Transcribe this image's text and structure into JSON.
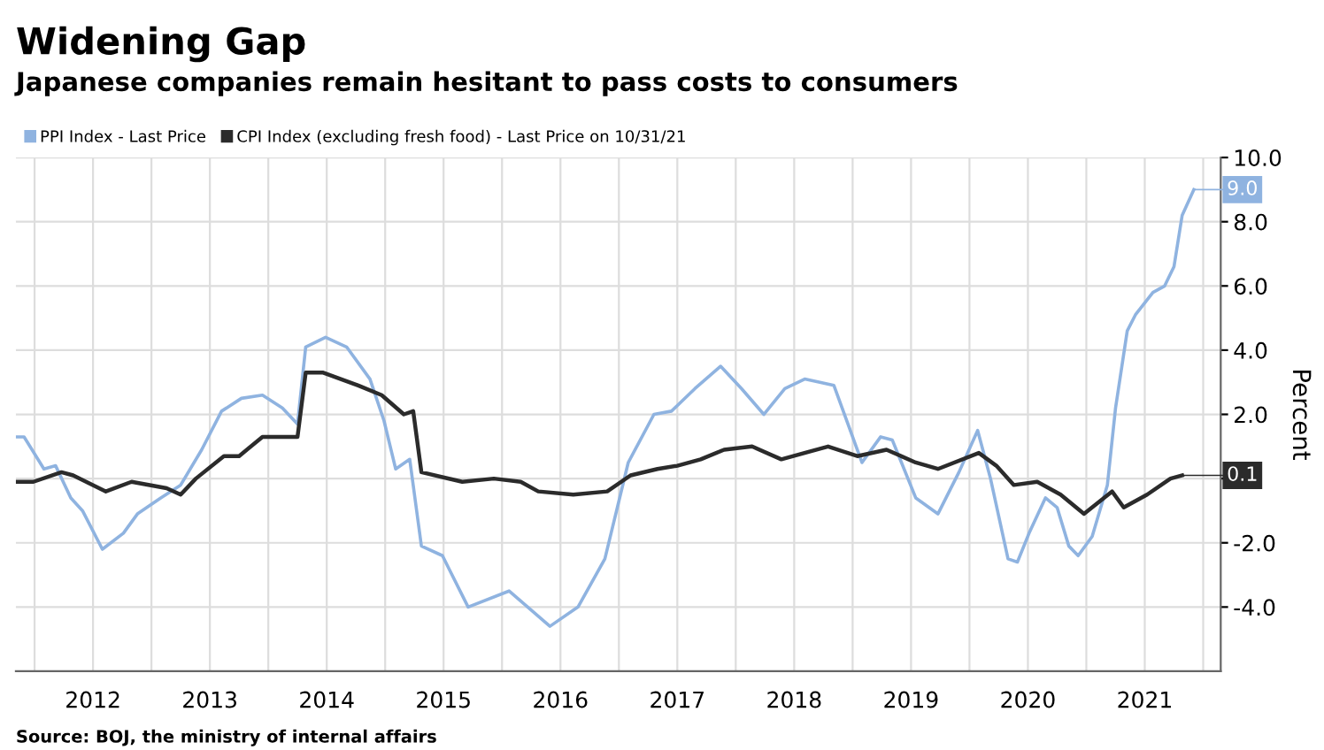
{
  "chart_data": {
    "type": "line",
    "title": "Widening Gap",
    "subtitle": "Japanese companies remain hesitant to pass costs to consumers",
    "ylabel": "Percent",
    "series": [
      {
        "name": "PPI Index - Last Price",
        "color": "#8fb3e0",
        "x": [
          2011.84,
          2011.91,
          2012.08,
          2012.18,
          2012.31,
          2012.41,
          2012.58,
          2012.76,
          2012.88,
          2013.08,
          2013.25,
          2013.43,
          2013.6,
          2013.77,
          2013.95,
          2014.12,
          2014.25,
          2014.32,
          2014.49,
          2014.67,
          2014.87,
          2014.99,
          2015.09,
          2015.21,
          2015.31,
          2015.49,
          2015.71,
          2016.06,
          2016.41,
          2016.65,
          2016.88,
          2017.08,
          2017.3,
          2017.45,
          2017.65,
          2017.87,
          2018.05,
          2018.24,
          2018.42,
          2018.59,
          2018.72,
          2018.84,
          2018.96,
          2019.08,
          2019.24,
          2019.34,
          2019.54,
          2019.73,
          2019.91,
          2020.07,
          2020.18,
          2020.33,
          2020.41,
          2020.51,
          2020.65,
          2020.75,
          2020.85,
          2020.93,
          2021.05,
          2021.18,
          2021.25,
          2021.35,
          2021.42,
          2021.57,
          2021.67,
          2021.75,
          2021.82,
          2021.92
        ],
        "values": [
          1.3,
          1.3,
          0.3,
          0.4,
          -0.6,
          -1.0,
          -2.2,
          -1.7,
          -1.1,
          -0.6,
          -0.2,
          0.9,
          2.1,
          2.5,
          2.6,
          2.2,
          1.7,
          4.1,
          4.4,
          4.1,
          3.1,
          1.8,
          0.3,
          0.6,
          -2.1,
          -2.4,
          -4.0,
          -3.5,
          -4.6,
          -4.0,
          -2.5,
          0.5,
          2.0,
          2.1,
          2.8,
          3.5,
          2.8,
          2.0,
          2.8,
          3.1,
          3.0,
          2.9,
          1.7,
          0.5,
          1.3,
          1.2,
          -0.6,
          -1.1,
          0.2,
          1.5,
          0.0,
          -2.5,
          -2.6,
          -1.7,
          -0.6,
          -0.9,
          -2.1,
          -2.4,
          -1.8,
          -0.2,
          2.2,
          4.6,
          5.1,
          5.8,
          6.0,
          6.6,
          8.2,
          9.0
        ]
      },
      {
        "name": "CPI Index (excluding fresh food) - Last Price on 10/31/21",
        "color": "#2b2b2b",
        "x": [
          2011.84,
          2011.99,
          2012.23,
          2012.33,
          2012.61,
          2012.83,
          2013.13,
          2013.25,
          2013.38,
          2013.62,
          2013.75,
          2013.95,
          2014.25,
          2014.32,
          2014.47,
          2014.77,
          2014.97,
          2015.16,
          2015.24,
          2015.31,
          2015.66,
          2015.93,
          2016.16,
          2016.31,
          2016.61,
          2016.9,
          2017.1,
          2017.33,
          2017.5,
          2017.7,
          2017.9,
          2018.14,
          2018.39,
          2018.79,
          2019.04,
          2019.29,
          2019.54,
          2019.73,
          2020.08,
          2020.23,
          2020.38,
          2020.58,
          2020.78,
          2020.98,
          2021.22,
          2021.32,
          2021.52,
          2021.72,
          2021.82
        ],
        "values": [
          -0.1,
          -0.1,
          0.2,
          0.1,
          -0.4,
          -0.1,
          -0.3,
          -0.5,
          0.0,
          0.7,
          0.7,
          1.3,
          1.3,
          3.3,
          3.3,
          2.9,
          2.6,
          2.0,
          2.1,
          0.2,
          -0.1,
          0.0,
          -0.1,
          -0.4,
          -0.5,
          -0.4,
          0.1,
          0.3,
          0.4,
          0.6,
          0.9,
          1.0,
          0.6,
          1.0,
          0.7,
          0.9,
          0.5,
          0.3,
          0.8,
          0.4,
          -0.2,
          -0.1,
          -0.5,
          -1.1,
          -0.4,
          -0.9,
          -0.5,
          0.0,
          0.1
        ]
      }
    ],
    "xlim": [
      2011.84,
      2022.15
    ],
    "xticks": [
      {
        "value": 2012,
        "label": null
      },
      {
        "value": 2012.5,
        "label": "2012"
      },
      {
        "value": 2013,
        "label": null
      },
      {
        "value": 2013.5,
        "label": "2013"
      },
      {
        "value": 2014,
        "label": null
      },
      {
        "value": 2014.5,
        "label": "2014"
      },
      {
        "value": 2015,
        "label": null
      },
      {
        "value": 2015.5,
        "label": "2015"
      },
      {
        "value": 2016,
        "label": null
      },
      {
        "value": 2016.5,
        "label": "2016"
      },
      {
        "value": 2017,
        "label": null
      },
      {
        "value": 2017.5,
        "label": "2017"
      },
      {
        "value": 2018,
        "label": null
      },
      {
        "value": 2018.5,
        "label": "2018"
      },
      {
        "value": 2019,
        "label": null
      },
      {
        "value": 2019.5,
        "label": "2019"
      },
      {
        "value": 2020,
        "label": null
      },
      {
        "value": 2020.5,
        "label": "2020"
      },
      {
        "value": 2021,
        "label": null
      },
      {
        "value": 2021.5,
        "label": "2021"
      },
      {
        "value": 2022,
        "label": null
      }
    ],
    "ylim": [
      -6,
      10
    ],
    "yticks": [
      {
        "value": 10,
        "label": "10.0"
      },
      {
        "value": 8,
        "label": "8.0"
      },
      {
        "value": 6,
        "label": "6.0"
      },
      {
        "value": 4,
        "label": "4.0"
      },
      {
        "value": 2,
        "label": "2.0"
      },
      {
        "value": 0,
        "label": null
      },
      {
        "value": -2,
        "label": "-2.0"
      },
      {
        "value": -4,
        "label": "-4.0"
      }
    ],
    "annotations": [
      {
        "text": "9.0",
        "x": 2021.92,
        "y": 9.0
      },
      {
        "text": "0.1",
        "x": 2021.82,
        "y": 0.1
      },
      "Source: BOJ, the ministry of internal affairs"
    ],
    "grid": true,
    "legend": "top left",
    "marker": "none",
    "line_style": "solid"
  }
}
